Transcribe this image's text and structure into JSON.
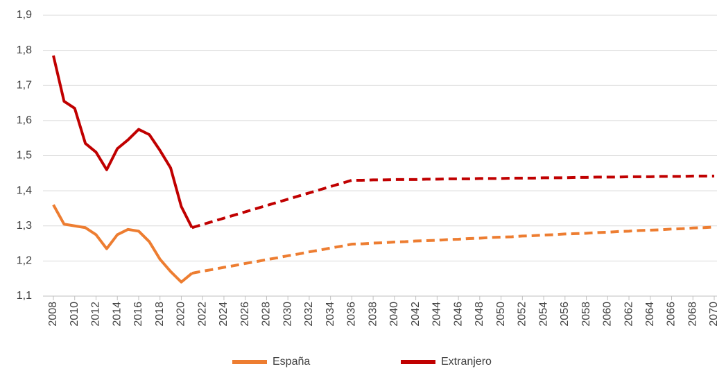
{
  "chart_data": {
    "type": "line",
    "x": [
      2008,
      2009,
      2010,
      2011,
      2012,
      2013,
      2014,
      2015,
      2016,
      2017,
      2018,
      2019,
      2020,
      2021,
      2022,
      2023,
      2024,
      2025,
      2026,
      2027,
      2028,
      2029,
      2030,
      2031,
      2032,
      2033,
      2034,
      2035,
      2036,
      2037,
      2038,
      2039,
      2040,
      2041,
      2042,
      2043,
      2044,
      2045,
      2046,
      2047,
      2048,
      2049,
      2050,
      2051,
      2052,
      2053,
      2054,
      2055,
      2056,
      2057,
      2058,
      2059,
      2060,
      2061,
      2062,
      2063,
      2064,
      2065,
      2066,
      2067,
      2068,
      2069,
      2070
    ],
    "projection_from": 2021,
    "series": [
      {
        "name": "España",
        "color": "#ed7d31",
        "values": [
          1.36,
          1.305,
          1.3,
          1.295,
          1.275,
          1.235,
          1.275,
          1.29,
          1.285,
          1.255,
          1.205,
          1.17,
          1.14,
          1.165,
          1.171,
          1.176,
          1.182,
          1.187,
          1.193,
          1.198,
          1.204,
          1.209,
          1.215,
          1.22,
          1.226,
          1.231,
          1.237,
          1.242,
          1.248,
          1.249,
          1.251,
          1.252,
          1.254,
          1.255,
          1.257,
          1.258,
          1.259,
          1.261,
          1.262,
          1.264,
          1.265,
          1.267,
          1.268,
          1.269,
          1.271,
          1.272,
          1.274,
          1.275,
          1.277,
          1.278,
          1.279,
          1.281,
          1.282,
          1.284,
          1.285,
          1.287,
          1.288,
          1.289,
          1.291,
          1.292,
          1.294,
          1.295,
          1.297
        ]
      },
      {
        "name": "Extranjero",
        "color": "#c00000",
        "values": [
          1.785,
          1.655,
          1.635,
          1.535,
          1.51,
          1.46,
          1.52,
          1.545,
          1.575,
          1.56,
          1.515,
          1.465,
          1.355,
          1.295,
          1.304,
          1.313,
          1.322,
          1.331,
          1.34,
          1.349,
          1.358,
          1.367,
          1.376,
          1.385,
          1.394,
          1.403,
          1.412,
          1.421,
          1.43,
          1.43,
          1.431,
          1.431,
          1.432,
          1.432,
          1.432,
          1.433,
          1.433,
          1.434,
          1.434,
          1.434,
          1.435,
          1.435,
          1.435,
          1.436,
          1.436,
          1.436,
          1.437,
          1.437,
          1.437,
          1.438,
          1.438,
          1.439,
          1.439,
          1.439,
          1.44,
          1.44,
          1.44,
          1.441,
          1.441,
          1.441,
          1.442,
          1.442,
          1.442
        ]
      }
    ],
    "xlim": [
      2008,
      2070
    ],
    "xticks": [
      2008,
      2010,
      2012,
      2014,
      2016,
      2018,
      2020,
      2022,
      2024,
      2026,
      2028,
      2030,
      2032,
      2034,
      2036,
      2038,
      2040,
      2042,
      2044,
      2046,
      2048,
      2050,
      2052,
      2054,
      2056,
      2058,
      2060,
      2062,
      2064,
      2066,
      2068,
      2070
    ],
    "ylim": [
      1.1,
      1.9
    ],
    "yticks": [
      {
        "value": 1.1,
        "label": "1,1"
      },
      {
        "value": 1.2,
        "label": "1,2"
      },
      {
        "value": 1.3,
        "label": "1,3"
      },
      {
        "value": 1.4,
        "label": "1,4"
      },
      {
        "value": 1.5,
        "label": "1,5"
      },
      {
        "value": 1.6,
        "label": "1,6"
      },
      {
        "value": 1.7,
        "label": "1,7"
      },
      {
        "value": 1.8,
        "label": "1,8"
      },
      {
        "value": 1.9,
        "label": "1,9"
      }
    ],
    "grid": true,
    "legend": "bottom"
  }
}
